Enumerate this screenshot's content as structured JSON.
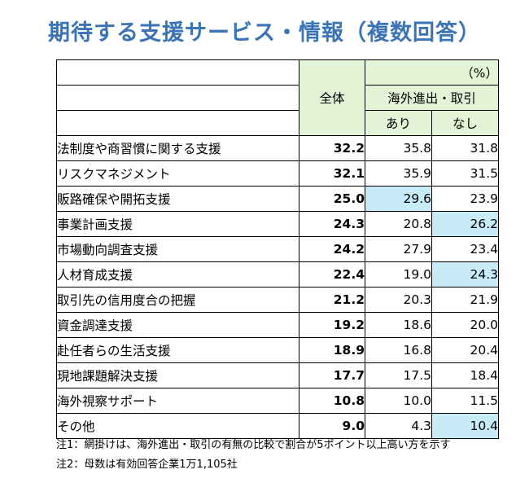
{
  "title": "期待する支援サービス・情報（複数回答）",
  "table": {
    "unit": "（%）",
    "col_total": "全体",
    "col_overseas": "海外進出・取引",
    "col_yes": "あり",
    "col_no": "なし",
    "rows": [
      {
        "label": "法制度や商習慣に関する支援",
        "total": "32.2",
        "yes": "35.8",
        "no": "31.8",
        "hl_yes": false,
        "hl_no": false
      },
      {
        "label": "リスクマネジメント",
        "total": "32.1",
        "yes": "35.9",
        "no": "31.5",
        "hl_yes": false,
        "hl_no": false
      },
      {
        "label": "販路確保や開拓支援",
        "total": "25.0",
        "yes": "29.6",
        "no": "23.9",
        "hl_yes": true,
        "hl_no": false
      },
      {
        "label": "事業計画支援",
        "total": "24.3",
        "yes": "20.8",
        "no": "26.2",
        "hl_yes": false,
        "hl_no": true
      },
      {
        "label": "市場動向調査支援",
        "total": "24.2",
        "yes": "27.9",
        "no": "23.4",
        "hl_yes": false,
        "hl_no": false
      },
      {
        "label": "人材育成支援",
        "total": "22.4",
        "yes": "19.0",
        "no": "24.3",
        "hl_yes": false,
        "hl_no": true
      },
      {
        "label": "取引先の信用度合の把握",
        "total": "21.2",
        "yes": "20.3",
        "no": "21.9",
        "hl_yes": false,
        "hl_no": false
      },
      {
        "label": "資金調達支援",
        "total": "19.2",
        "yes": "18.6",
        "no": "20.0",
        "hl_yes": false,
        "hl_no": false
      },
      {
        "label": "赴任者らの生活支援",
        "total": "18.9",
        "yes": "16.8",
        "no": "20.4",
        "hl_yes": false,
        "hl_no": false
      },
      {
        "label": "現地課題解決支援",
        "total": "17.7",
        "yes": "17.5",
        "no": "18.4",
        "hl_yes": false,
        "hl_no": false
      },
      {
        "label": "海外視察サポート",
        "total": "10.8",
        "yes": "10.0",
        "no": "11.5",
        "hl_yes": false,
        "hl_no": false
      },
      {
        "label": "その他",
        "total": "9.0",
        "yes": "4.3",
        "no": "10.4",
        "hl_yes": false,
        "hl_no": true
      }
    ]
  },
  "notes": [
    "注1：網掛けは、海外進出・取引の有無の比較で割合が5ポイント以上高い方を示す",
    "注2：母数は有効回答企業1万1,105社"
  ],
  "colors": {
    "title": "#3a74b4",
    "header_bg": "#e3f3d6",
    "highlight": "#c7ecf8"
  }
}
